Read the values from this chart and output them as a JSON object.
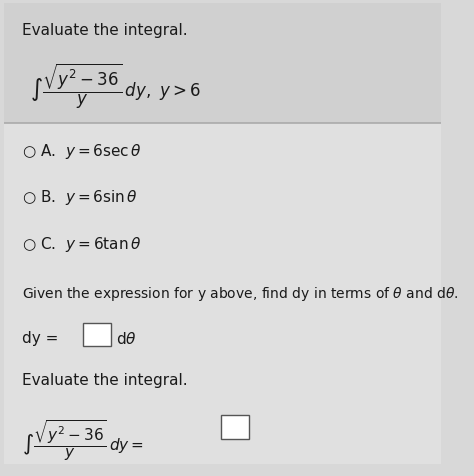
{
  "title": "Evaluate the integral.",
  "integral_top": "$\\int \\dfrac{\\sqrt{y^2 - 36}}{y}\\,dy,\\; y > 6$",
  "option_A": "$\\bigcirc$ A.  $y = 6\\sec\\theta$",
  "option_B": "$\\bigcirc$ B.  $y = 6\\sin\\theta$",
  "option_C": "$\\bigcirc$ C.  $y = 6\\tan\\theta$",
  "given_text": "Given the expression for y above, find dy in terms of $\\theta$ and d$\\theta$.",
  "dy_line": "dy = $\\square$ d$\\theta$",
  "eval_text": "Evaluate the integral.",
  "integral_bottom": "$\\int \\dfrac{\\sqrt{y^2 - 36}}{y}\\,dy = \\square$",
  "bg_color": "#d8d8d8",
  "text_color": "#1a1a1a",
  "option_color": "#1a1a1a",
  "divider_color": "#aaaaaa",
  "top_bg": "#d8d8d8",
  "bottom_bg": "#e8e8e8"
}
